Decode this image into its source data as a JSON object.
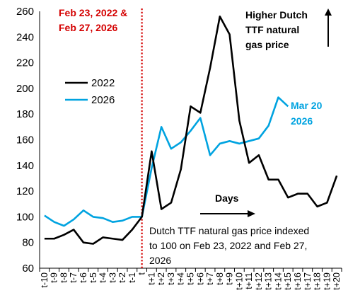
{
  "chart_data": {
    "type": "line",
    "x": [
      "t-10",
      "t-9",
      "t-8",
      "t-7",
      "t-6",
      "t-5",
      "t-4",
      "t-3",
      "t-2",
      "t-1",
      "t",
      "t+1",
      "t+2",
      "t+3",
      "t+4",
      "t+5",
      "t+6",
      "t+7",
      "t+8",
      "t+9",
      "t+10",
      "t+11",
      "t+12",
      "t+13",
      "t+14",
      "t+15",
      "t+16",
      "t+17",
      "t+18",
      "t+19",
      "t+20"
    ],
    "ylim": [
      60,
      260
    ],
    "yticks": [
      60,
      80,
      100,
      120,
      140,
      160,
      180,
      200,
      220,
      240,
      260
    ],
    "series": [
      {
        "name": "2022",
        "color": "#000000",
        "values": [
          83,
          83,
          86,
          90,
          80,
          79,
          84,
          83,
          82,
          90,
          100,
          151,
          106,
          111,
          137,
          186,
          181,
          216,
          256,
          242,
          175,
          142,
          148,
          129,
          129,
          115,
          118,
          118,
          108,
          111,
          132
        ]
      },
      {
        "name": "2026",
        "color": "#00a3e0",
        "values": [
          101,
          96,
          93,
          98,
          105,
          100,
          99,
          96,
          97,
          100,
          100,
          138,
          170,
          153,
          158,
          167,
          177,
          148,
          157,
          159,
          157,
          159,
          161,
          171,
          193,
          186,
          null,
          null,
          null,
          null,
          null
        ]
      }
    ],
    "event_line_index": 10,
    "event_line_color": "#d40000",
    "legend_position": "middle-left",
    "annotations": {
      "event_date_lines": [
        "Feb 23, 2022 &",
        "Feb 27, 2026"
      ],
      "direction_lines": [
        "Higher Dutch",
        "TTF natural",
        "gas price"
      ],
      "last_date_lines": [
        "Mar 20",
        "2026"
      ],
      "days_label": "Days",
      "note_lines": [
        "Dutch TTF natural gas price indexed",
        "to 100 on Feb 23, 2022 and Feb 27,",
        "2026"
      ]
    }
  }
}
